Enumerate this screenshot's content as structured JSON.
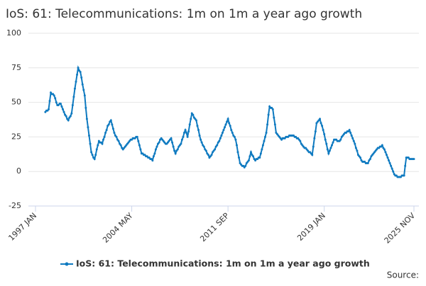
{
  "chart_data": {
    "type": "line",
    "title": "IoS: 61: Telecommunications: 1m on 1m a year ago growth",
    "source": "Source:",
    "categories": [
      "1997 JAN",
      null,
      null,
      null,
      null,
      null,
      null,
      null,
      null,
      null,
      null,
      null,
      null,
      null,
      null,
      null,
      null,
      null,
      null,
      null,
      null,
      null,
      null,
      null,
      null,
      null,
      null,
      null,
      null,
      null,
      null,
      null,
      null,
      null,
      null,
      null,
      null,
      null,
      null,
      null,
      null,
      null,
      null,
      null,
      null,
      null,
      null,
      null,
      null,
      null,
      null,
      null,
      null,
      null,
      null,
      null,
      null,
      null,
      null,
      null,
      null,
      null,
      null,
      null,
      null,
      null,
      null,
      null,
      null,
      null,
      null,
      null,
      null,
      null,
      null,
      null,
      null,
      null,
      null,
      null,
      null,
      null,
      null,
      null,
      null,
      null,
      null,
      null,
      "2004 MAY",
      null,
      null,
      null,
      null,
      null,
      null,
      null,
      null,
      null,
      null,
      null,
      null,
      null,
      null,
      null,
      null,
      null,
      null,
      null,
      null,
      null,
      null,
      null,
      null,
      null,
      null,
      null,
      null,
      null,
      null,
      null,
      null,
      null,
      null,
      null,
      null,
      null,
      null,
      null,
      null,
      null,
      null,
      null,
      null,
      null,
      null,
      null,
      null,
      null,
      null,
      null,
      null,
      null,
      null,
      null,
      null,
      null,
      null,
      null,
      null,
      null,
      null,
      null,
      null,
      null,
      null,
      null,
      null,
      null,
      null,
      null,
      null,
      null,
      null,
      null,
      null,
      null,
      null,
      null,
      null,
      null,
      null,
      null,
      null,
      null,
      null,
      null,
      "2011 SEP",
      null,
      null,
      null,
      null,
      null,
      null,
      null,
      null,
      null,
      null,
      null,
      null,
      null,
      null,
      null,
      null,
      null,
      null,
      null,
      null,
      null,
      null,
      null,
      null,
      null,
      null,
      null,
      null,
      null,
      null,
      null,
      null,
      null,
      null,
      null,
      null,
      null,
      null,
      null,
      null,
      null,
      null,
      null,
      null,
      null,
      null,
      null,
      null,
      null,
      null,
      null,
      null,
      null,
      null,
      null,
      null,
      null,
      null,
      null,
      null,
      null,
      null,
      null,
      null,
      null,
      null,
      null,
      null,
      null,
      null,
      null,
      null,
      null,
      null,
      null,
      null,
      null,
      null,
      null,
      null,
      null,
      null,
      null,
      null,
      null,
      null,
      null,
      "2019 JAN",
      null,
      null,
      null,
      null,
      null,
      null,
      null,
      null,
      null,
      null,
      null,
      null,
      null,
      null,
      null,
      null,
      null,
      null,
      null,
      null,
      null,
      null,
      null,
      null,
      null,
      null,
      null,
      null,
      null,
      null,
      null,
      null,
      null,
      null,
      null,
      null,
      null,
      null,
      null,
      null,
      null,
      null,
      null,
      null,
      null,
      null,
      null,
      null,
      null,
      null,
      null,
      null,
      null,
      null,
      null,
      null,
      null,
      null,
      null,
      null,
      null,
      null,
      null,
      null,
      null,
      null,
      null,
      null,
      null,
      null,
      null,
      null,
      null,
      null,
      null,
      null,
      null,
      null,
      null,
      null,
      null,
      "2025 NOV"
    ],
    "series": [
      {
        "name": "IoS: 61: Telecommunications: 1m on 1m a year ago growth",
        "color": "#0f7ac0",
        "values": [
          null,
          null,
          null,
          null,
          null,
          null,
          null,
          null,
          null,
          43,
          44,
          44,
          45,
          51,
          57,
          56,
          56,
          55,
          53,
          50,
          48,
          48,
          49,
          49,
          47,
          45,
          43,
          41,
          40,
          38,
          37,
          39,
          40,
          42,
          48,
          54,
          60,
          65,
          70,
          75,
          73,
          72,
          68,
          63,
          59,
          55,
          46,
          38,
          32,
          26,
          20,
          14,
          12,
          10,
          9,
          12,
          16,
          19,
          22,
          21,
          21,
          20,
          23,
          25,
          28,
          30,
          33,
          34,
          36,
          37,
          34,
          31,
          28,
          26,
          25,
          23,
          22,
          20,
          19,
          17,
          16,
          17,
          18,
          19,
          20,
          21,
          22,
          23,
          23,
          24,
          24,
          24,
          25,
          25,
          22,
          19,
          16,
          13,
          13,
          12,
          12,
          11,
          11,
          10,
          10,
          9,
          9,
          8,
          11,
          13,
          16,
          18,
          20,
          21,
          23,
          24,
          23,
          22,
          21,
          20,
          20,
          21,
          22,
          23,
          24,
          21,
          18,
          15,
          13,
          15,
          16,
          18,
          19,
          20,
          23,
          25,
          28,
          30,
          28,
          25,
          29,
          34,
          38,
          42,
          41,
          39,
          38,
          37,
          33,
          30,
          26,
          23,
          21,
          19,
          18,
          16,
          15,
          13,
          12,
          10,
          11,
          12,
          14,
          15,
          16,
          18,
          19,
          21,
          22,
          24,
          26,
          28,
          30,
          32,
          34,
          36,
          38,
          35,
          33,
          30,
          28,
          26,
          25,
          23,
          19,
          14,
          10,
          6,
          5,
          4,
          4,
          3,
          4,
          6,
          7,
          8,
          11,
          14,
          12,
          11,
          9,
          8,
          9,
          9,
          10,
          10,
          13,
          16,
          19,
          22,
          25,
          28,
          34,
          41,
          47,
          46,
          46,
          45,
          39,
          34,
          28,
          27,
          26,
          25,
          24,
          23,
          24,
          24,
          24,
          25,
          25,
          25,
          26,
          26,
          26,
          26,
          26,
          25,
          25,
          24,
          24,
          23,
          22,
          20,
          19,
          18,
          17,
          17,
          16,
          15,
          14,
          14,
          13,
          12,
          18,
          24,
          29,
          35,
          36,
          37,
          38,
          35,
          33,
          30,
          27,
          23,
          20,
          16,
          13,
          15,
          17,
          19,
          21,
          23,
          23,
          23,
          22,
          22,
          22,
          23,
          25,
          26,
          27,
          28,
          28,
          29,
          29,
          30,
          28,
          26,
          24,
          22,
          20,
          17,
          15,
          12,
          11,
          10,
          8,
          7,
          7,
          7,
          6,
          6,
          6,
          8,
          9,
          11,
          12,
          13,
          14,
          15,
          16,
          17,
          17,
          18,
          18,
          19,
          17,
          16,
          14,
          12,
          10,
          8,
          6,
          4,
          2,
          0,
          -2,
          -3,
          -3,
          -4,
          -4,
          -4,
          -4,
          -3,
          -3,
          -3,
          4,
          10,
          10,
          10,
          9,
          9,
          9,
          9,
          9
        ]
      }
    ],
    "ylim": [
      -25,
      100
    ],
    "yticks": [
      -25,
      0,
      25,
      50,
      75,
      100
    ],
    "grid": true
  }
}
